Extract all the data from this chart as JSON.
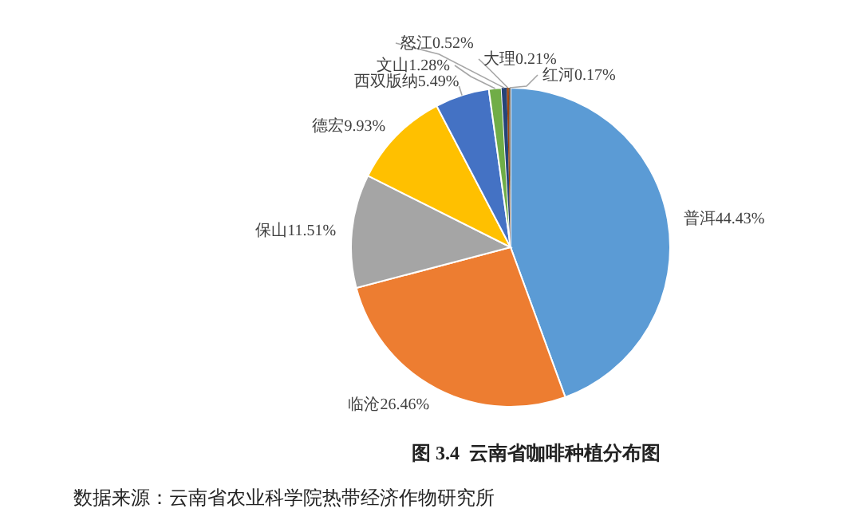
{
  "chart_data": {
    "type": "pie",
    "title": "图 3.4  云南省咖啡种植分布图",
    "annotations": [
      "数据来源：云南省农业科学院热带经济作物研究所"
    ],
    "categories": [
      "普洱",
      "临沧",
      "保山",
      "德宏",
      "西双版纳",
      "文山",
      "怒江",
      "大理",
      "红河"
    ],
    "values": [
      44.43,
      26.46,
      11.51,
      9.93,
      5.49,
      1.28,
      0.52,
      0.21,
      0.17
    ],
    "value_labels": [
      "44.43%",
      "26.46%",
      "11.51%",
      "9.93%",
      "5.49%",
      "1.28%",
      "0.52%",
      "0.21%",
      "0.17%"
    ],
    "colors": [
      "#5b9bd5",
      "#ed7d31",
      "#a5a5a5",
      "#ffc000",
      "#4472c4",
      "#70ad47",
      "#264478",
      "#9e480e",
      "#636363"
    ],
    "legend": false
  }
}
